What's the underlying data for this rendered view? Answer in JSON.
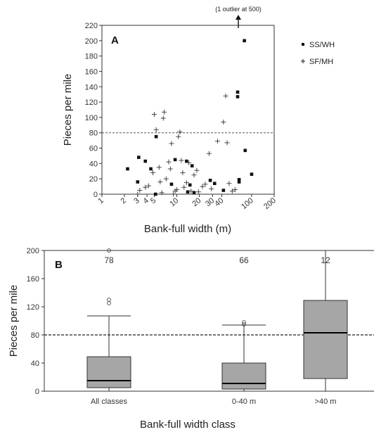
{
  "chart_data": [
    {
      "type": "scatter",
      "panel_label": "A",
      "xlabel": "Bank-full width (m)",
      "ylabel": "Pieces per mile",
      "x_scale": "log",
      "xlim": [
        1,
        200
      ],
      "ylim": [
        0,
        220
      ],
      "x_ticks": [
        1,
        2,
        3,
        4,
        5,
        10,
        20,
        30,
        40,
        100,
        200
      ],
      "y_ticks": [
        0,
        20,
        40,
        60,
        80,
        100,
        120,
        140,
        160,
        180,
        200,
        220
      ],
      "reference_line_y": 80,
      "annotation": "(1 outlier at 500)",
      "legend_position": "right",
      "series": [
        {
          "name": "SS/WH",
          "marker": "square",
          "points": [
            [
              2.2,
              33
            ],
            [
              3.1,
              48
            ],
            [
              3.0,
              16
            ],
            [
              3.8,
              43
            ],
            [
              4.5,
              33
            ],
            [
              5.3,
              75
            ],
            [
              5.2,
              0
            ],
            [
              8.5,
              13
            ],
            [
              9.5,
              45
            ],
            [
              13.5,
              43
            ],
            [
              16,
              37
            ],
            [
              15,
              12
            ],
            [
              14,
              3
            ],
            [
              17,
              2
            ],
            [
              28,
              18
            ],
            [
              32,
              14
            ],
            [
              42,
              5
            ],
            [
              65,
              133
            ],
            [
              65,
              127
            ],
            [
              68,
              19
            ],
            [
              68,
              16
            ],
            [
              80,
              200
            ],
            [
              82,
              57
            ],
            [
              100,
              26
            ]
          ]
        },
        {
          "name": "SF/MH",
          "marker": "cross",
          "points": [
            [
              3.0,
              0
            ],
            [
              3.2,
              5
            ],
            [
              3.8,
              9
            ],
            [
              4.2,
              11
            ],
            [
              4.8,
              28
            ],
            [
              5.0,
              104
            ],
            [
              5.3,
              84
            ],
            [
              5.8,
              35
            ],
            [
              6.0,
              16
            ],
            [
              6.3,
              2
            ],
            [
              6.6,
              99
            ],
            [
              6.8,
              107
            ],
            [
              7.2,
              20
            ],
            [
              7.8,
              42
            ],
            [
              8.2,
              33
            ],
            [
              8.5,
              66
            ],
            [
              9.0,
              0
            ],
            [
              9.5,
              4
            ],
            [
              10,
              6
            ],
            [
              10.5,
              75
            ],
            [
              11,
              81
            ],
            [
              11.5,
              44
            ],
            [
              12,
              28
            ],
            [
              12.5,
              9
            ],
            [
              13.5,
              15
            ],
            [
              14.5,
              41
            ],
            [
              15.5,
              4
            ],
            [
              17,
              25
            ],
            [
              18.5,
              31
            ],
            [
              19.5,
              3
            ],
            [
              22,
              10
            ],
            [
              24,
              13
            ],
            [
              27,
              53
            ],
            [
              29,
              7
            ],
            [
              35,
              69
            ],
            [
              42,
              94
            ],
            [
              45,
              128
            ],
            [
              47,
              67
            ],
            [
              50,
              14
            ],
            [
              55,
              4
            ],
            [
              60,
              6
            ]
          ]
        }
      ]
    },
    {
      "type": "box",
      "panel_label": "B",
      "xlabel": "Bank-full width class",
      "ylabel": "Pieces per mile",
      "ylim": [
        0,
        200
      ],
      "y_ticks": [
        0,
        40,
        80,
        120,
        160,
        200
      ],
      "reference_line_y": 80,
      "categories": [
        "All classes",
        "0-40 m",
        ">40 m"
      ],
      "counts": [
        "78",
        "66",
        "12"
      ],
      "boxes": [
        {
          "whisker_low": 0,
          "q1": 5,
          "median": 15,
          "q3": 49,
          "whisker_high": 107,
          "outliers": [
            125,
            130,
            200
          ]
        },
        {
          "whisker_low": 0,
          "q1": 3,
          "median": 11,
          "q3": 40,
          "whisker_high": 94,
          "outliers": [
            95,
            98
          ]
        },
        {
          "whisker_low": 0,
          "q1": 18,
          "median": 83,
          "q3": 129,
          "whisker_high": 200,
          "outliers": []
        }
      ]
    }
  ]
}
